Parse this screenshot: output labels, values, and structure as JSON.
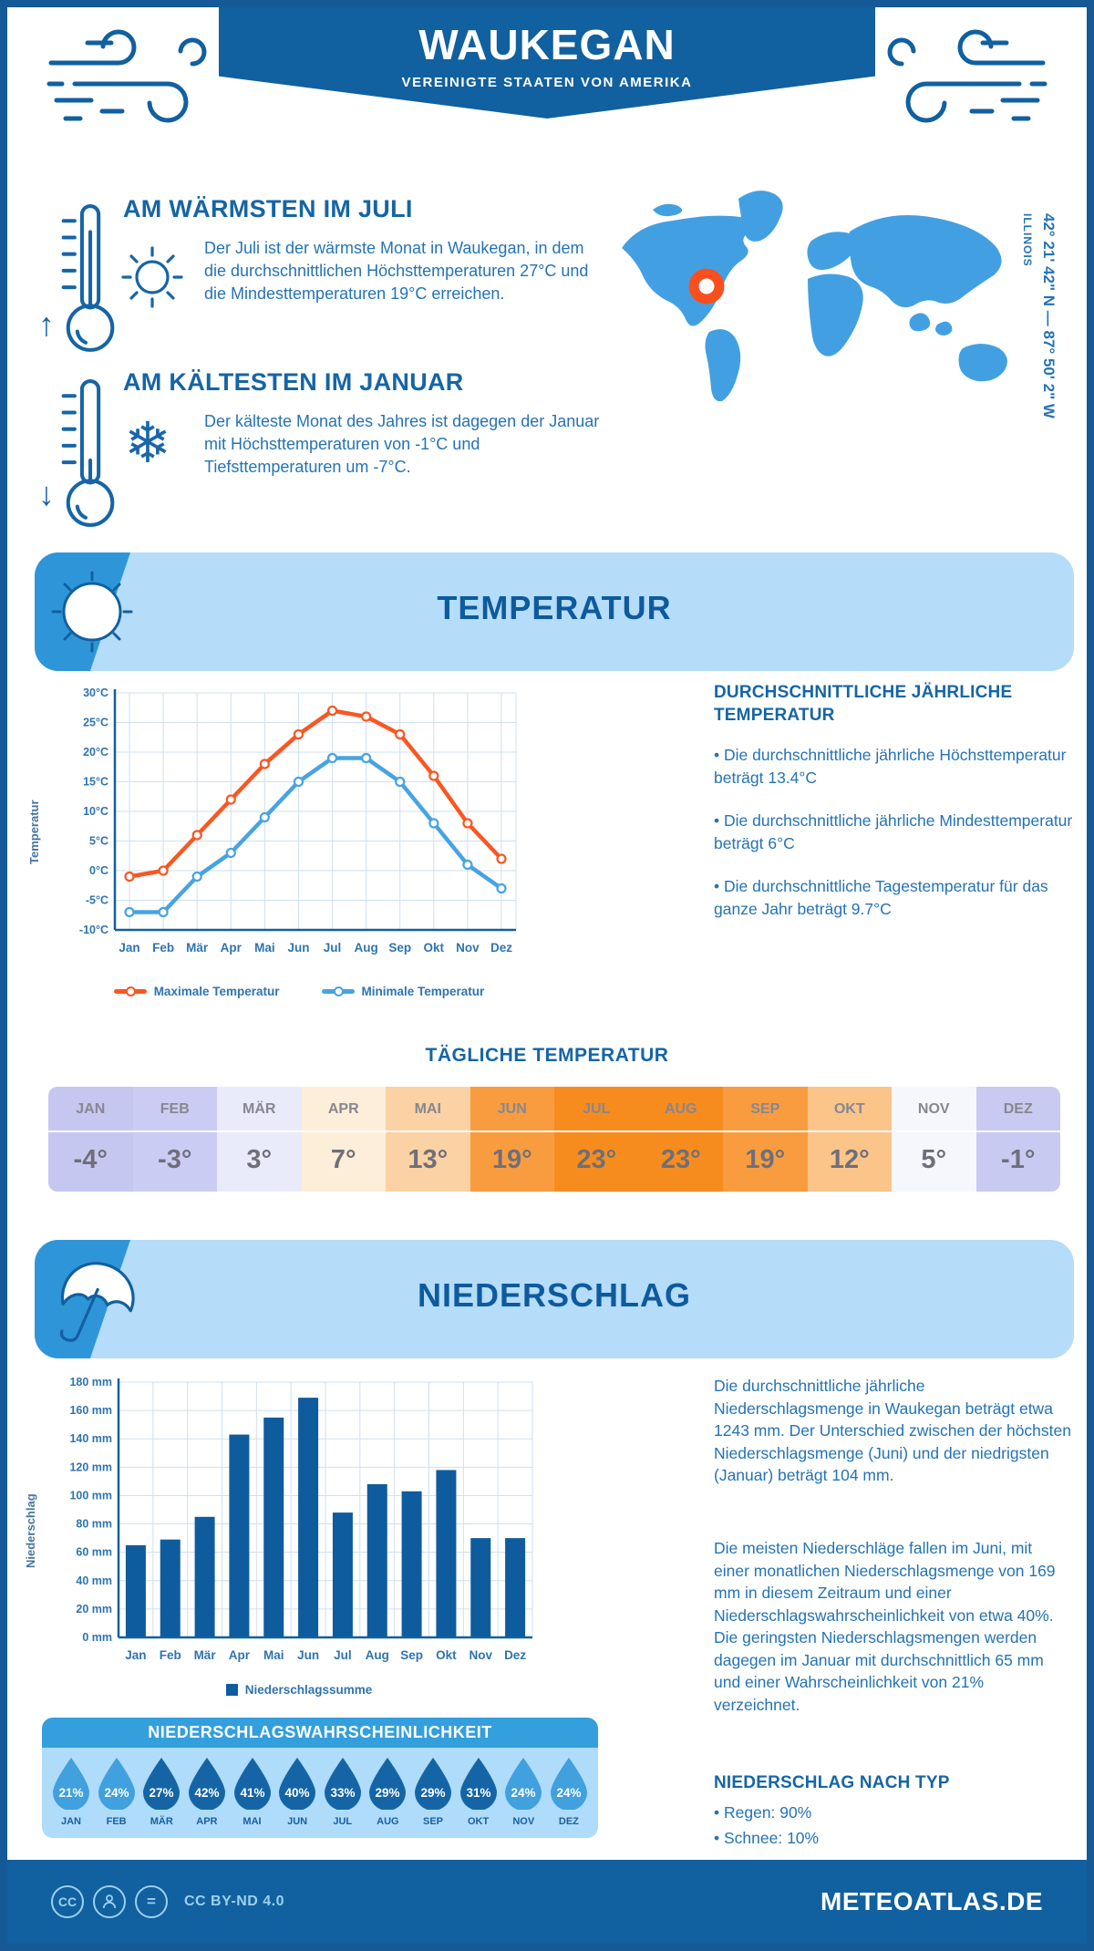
{
  "header": {
    "title": "WAUKEGAN",
    "subtitle": "VEREINIGTE STAATEN VON AMERIKA"
  },
  "map": {
    "region": "ILLINOIS",
    "coordinates": "42° 21' 42\" N — 87° 50' 2\" W",
    "land_color": "#42a0e2",
    "marker_color": "#f94f1e"
  },
  "highlights": {
    "warm": {
      "title": "AM WÄRMSTEN IM JULI",
      "text": "Der Juli ist der wärmste Monat in Waukegan, in dem die durchschnittlichen Höchsttemperaturen 27°C und die Mindesttemperaturen 19°C erreichen."
    },
    "cold": {
      "title": "AM KÄLTESTEN IM JANUAR",
      "text": "Der kälteste Monat des Jahres ist dagegen der Januar mit Höchsttemperaturen von -1°C und Tiefsttemperaturen um -7°C."
    }
  },
  "temperature": {
    "banner": "TEMPERATUR",
    "panel_title": "DURCHSCHNITTLICHE JÄHRLICHE TEMPERATUR",
    "bullets": [
      "• Die durchschnittliche jährliche Höchsttemperatur beträgt 13.4°C",
      "• Die durchschnittliche jährliche Mindesttemperatur beträgt 6°C",
      "• Die durchschnittliche Tagestemperatur für das ganze Jahr beträgt 9.7°C"
    ],
    "table_title": "TÄGLICHE TEMPERATUR",
    "table": {
      "months": [
        "JAN",
        "FEB",
        "MÄR",
        "APR",
        "MAI",
        "JUN",
        "JUL",
        "AUG",
        "SEP",
        "OKT",
        "NOV",
        "DEZ"
      ],
      "values": [
        "-4°",
        "-3°",
        "3°",
        "7°",
        "13°",
        "19°",
        "23°",
        "23°",
        "19°",
        "12°",
        "5°",
        "-1°"
      ],
      "colors": [
        "#c6c7f1",
        "#cbccf3",
        "#e9eafa",
        "#fdeeda",
        "#fbd2a4",
        "#f99c40",
        "#f78c1e",
        "#f78c1e",
        "#f99c40",
        "#fbc489",
        "#f6f6fd",
        "#c9caf2"
      ]
    }
  },
  "precipitation": {
    "banner": "NIEDERSCHLAG",
    "paragraphs": [
      "Die durchschnittliche jährliche Niederschlagsmenge in Waukegan beträgt etwa 1243 mm. Der Unterschied zwischen der höchsten Niederschlagsmenge (Juni) und der niedrigsten (Januar) beträgt 104 mm.",
      "Die meisten Niederschläge fallen im Juni, mit einer monatlichen Niederschlagsmenge von 169 mm in diesem Zeitraum und einer Niederschlagswahrscheinlichkeit von etwa 40%. Die geringsten Niederschlagsmengen werden dagegen im Januar mit durchschnittlich 65 mm und einer Wahrscheinlichkeit von 21% verzeichnet."
    ],
    "type_title": "NIEDERSCHLAG NACH TYP",
    "type_bullets": [
      "• Regen: 90%",
      "• Schnee: 10%"
    ],
    "probability": {
      "title": "NIEDERSCHLAGSWAHRSCHEINLICHKEIT",
      "months": [
        "JAN",
        "FEB",
        "MÄR",
        "APR",
        "MAI",
        "JUN",
        "JUL",
        "AUG",
        "SEP",
        "OKT",
        "NOV",
        "DEZ"
      ],
      "values": [
        "21%",
        "24%",
        "27%",
        "42%",
        "41%",
        "40%",
        "33%",
        "29%",
        "29%",
        "31%",
        "24%",
        "24%"
      ],
      "dark_flags": [
        false,
        false,
        true,
        true,
        true,
        true,
        true,
        true,
        true,
        true,
        false,
        false
      ],
      "dark_color": "#1565a6",
      "light_color": "#41a0de"
    }
  },
  "footer": {
    "license": "CC BY-ND 4.0",
    "site": "METEOATLAS.DE"
  },
  "chart_data": [
    {
      "type": "line",
      "title": "",
      "categories": [
        "Jan",
        "Feb",
        "Mär",
        "Apr",
        "Mai",
        "Jun",
        "Jul",
        "Aug",
        "Sep",
        "Okt",
        "Nov",
        "Dez"
      ],
      "series": [
        {
          "name": "Maximale Temperatur",
          "color": "#f95722",
          "values": [
            -1,
            0,
            6,
            12,
            18,
            23,
            27,
            26,
            23,
            16,
            8,
            2
          ]
        },
        {
          "name": "Minimale Temperatur",
          "color": "#47a3e2",
          "values": [
            -7,
            -7,
            -1,
            3,
            9,
            15,
            19,
            19,
            15,
            8,
            1,
            -3
          ]
        }
      ],
      "xlabel": "",
      "ylabel": "Temperatur",
      "ylim": [
        -10,
        30
      ],
      "ytick_step": 5,
      "ytick_suffix": "°C",
      "grid": true,
      "legend_position": "bottom"
    },
    {
      "type": "bar",
      "title": "",
      "categories": [
        "Jan",
        "Feb",
        "Mär",
        "Apr",
        "Mai",
        "Jun",
        "Jul",
        "Aug",
        "Sep",
        "Okt",
        "Nov",
        "Dez"
      ],
      "values": [
        65,
        69,
        85,
        143,
        155,
        169,
        88,
        108,
        103,
        118,
        70,
        70
      ],
      "legend": "Niederschlagssumme",
      "xlabel": "",
      "ylabel": "Niederschlag",
      "ylim": [
        0,
        180
      ],
      "ytick_step": 20,
      "ytick_suffix": " mm",
      "grid": true,
      "color": "#0e5c9e",
      "legend_position": "bottom"
    }
  ]
}
